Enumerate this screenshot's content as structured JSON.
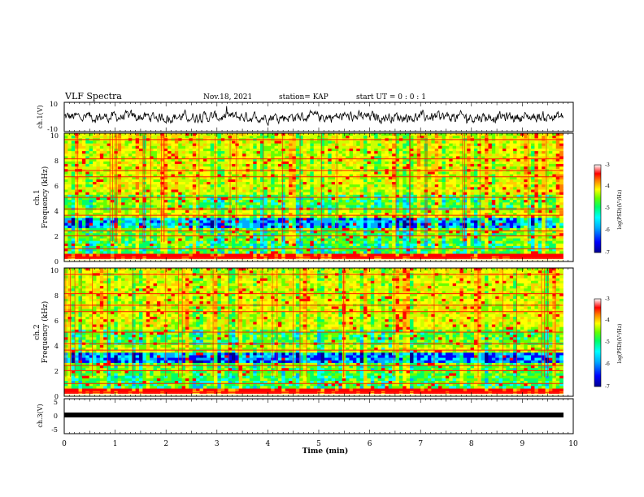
{
  "header": {
    "title": "VLF Spectra",
    "date": "Nov.18, 2021",
    "station": "station= KAP",
    "start": "start UT =  0 : 0  : 1"
  },
  "chart_data": [
    {
      "type": "line",
      "name": "ch1-waveform",
      "ylabel": "ch.1(V)",
      "ylim": [
        -10,
        10
      ],
      "yticks": [
        "10",
        "-10"
      ],
      "xlim": [
        0,
        10
      ],
      "data_extent_min": 9.8,
      "description_range": [
        -4,
        4
      ]
    },
    {
      "type": "heatmap",
      "name": "ch1-spectrogram",
      "ylabel": [
        "ch.1",
        "Frequency (kHz)"
      ],
      "ylim": [
        0,
        10
      ],
      "yticks": [
        "0",
        "2",
        "4",
        "6",
        "8",
        "10"
      ],
      "xlim": [
        0,
        10
      ],
      "colorbar": {
        "label": "log(PSD)(V²/Hz)",
        "range": [
          -7,
          -3
        ],
        "ticks": [
          "-3",
          "-4",
          "-5",
          "-6",
          "-7"
        ]
      }
    },
    {
      "type": "heatmap",
      "name": "ch2-spectrogram",
      "ylabel": [
        "ch.2",
        "Frequency (kHz)"
      ],
      "ylim": [
        0,
        10
      ],
      "yticks": [
        "0",
        "2",
        "4",
        "6",
        "8",
        "10"
      ],
      "xlim": [
        0,
        10
      ],
      "colorbar": {
        "label": "log(PSD)(V²/Hz)",
        "range": [
          -7,
          -3
        ],
        "ticks": [
          "-3",
          "-4",
          "-5",
          "-6",
          "-7"
        ]
      }
    },
    {
      "type": "line",
      "name": "ch3-waveform",
      "ylabel": "ch.3(V)",
      "ylim": [
        -5,
        5
      ],
      "yticks": [
        "5",
        "0",
        "-5"
      ],
      "xlim": [
        0,
        10
      ],
      "constant_value": -0.5
    }
  ],
  "xaxis": {
    "label": "Time (min)",
    "ticks": [
      "0",
      "1",
      "2",
      "3",
      "4",
      "5",
      "6",
      "7",
      "8",
      "9",
      "10"
    ]
  },
  "colors": {
    "cmap": [
      "#000090",
      "#0000ff",
      "#00aaff",
      "#00ffff",
      "#00ff66",
      "#66ff00",
      "#ccff00",
      "#ffff00",
      "#ffcc00",
      "#ff8000",
      "#ff0000",
      "#ffffff"
    ]
  }
}
